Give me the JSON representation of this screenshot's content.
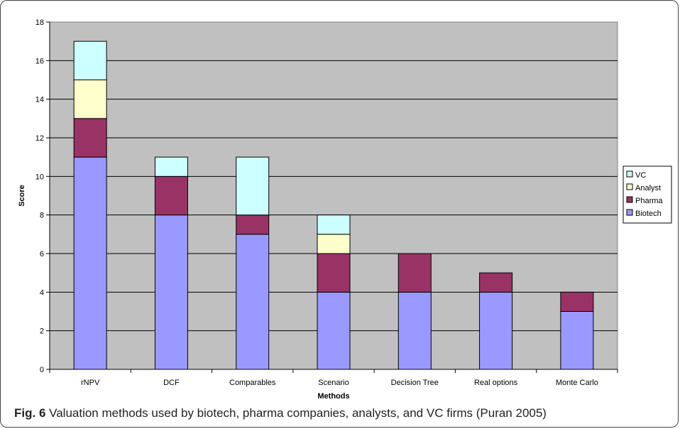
{
  "caption": {
    "label": "Fig. 6",
    "text": " Valuation methods used by biotech, pharma companies, analysts, and VC firms (Puran 2005)"
  },
  "chart_data": {
    "type": "bar",
    "stacked": true,
    "title": "",
    "xlabel": "Methods",
    "ylabel": "Score",
    "ylim": [
      0,
      18
    ],
    "yticks": [
      0,
      2,
      4,
      6,
      8,
      10,
      12,
      14,
      16,
      18
    ],
    "grid": true,
    "legend_position": "right",
    "categories": [
      "rNPV",
      "DCF",
      "Comparables",
      "Scenario",
      "Decision Tree",
      "Real options",
      "Monte Carlo"
    ],
    "series": [
      {
        "name": "Biotech",
        "color": "#9999ff",
        "values": [
          11,
          8,
          7,
          4,
          4,
          4,
          3
        ]
      },
      {
        "name": "Pharma",
        "color": "#993366",
        "values": [
          2,
          2,
          1,
          2,
          2,
          1,
          1
        ]
      },
      {
        "name": "Analyst",
        "color": "#ffffcc",
        "values": [
          2,
          0,
          0,
          1,
          0,
          0,
          0
        ]
      },
      {
        "name": "VC",
        "color": "#ccffff",
        "values": [
          2,
          1,
          3,
          1,
          0,
          0,
          0
        ]
      }
    ],
    "plot_background": "#c0c0c0"
  }
}
